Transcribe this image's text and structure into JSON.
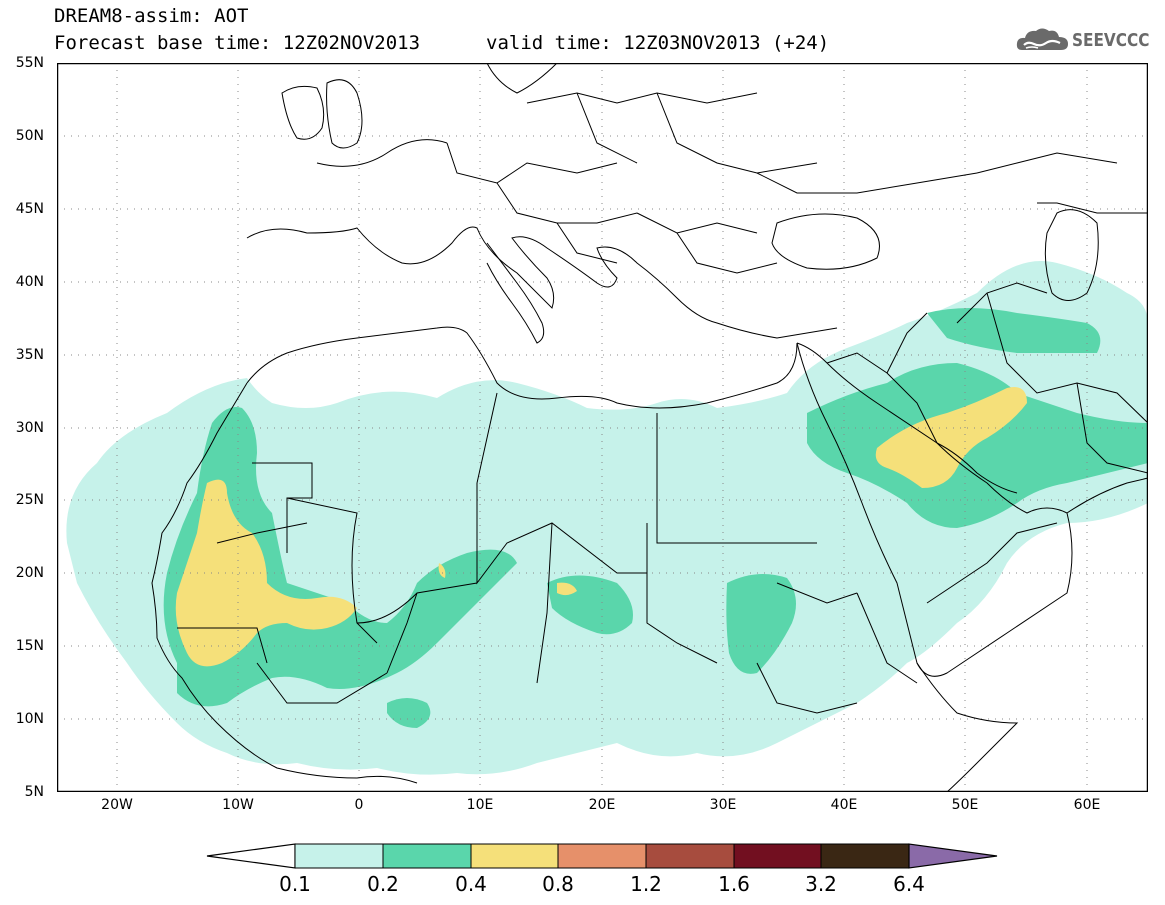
{
  "header": {
    "title_line1": "DREAM8-assim: AOT",
    "title_line2": "Forecast base time: 12Z02NOV2013",
    "valid_time": "valid time: 12Z03NOV2013 (+24)",
    "logo_text": "SEEVCCC",
    "logo_icon": "cloud-icon"
  },
  "map": {
    "lat_labels": [
      "55N",
      "50N",
      "45N",
      "40N",
      "35N",
      "30N",
      "25N",
      "20N",
      "15N",
      "10N",
      "5N"
    ],
    "lon_labels": [
      "20W",
      "10W",
      "0",
      "10E",
      "20E",
      "30E",
      "40E",
      "50E",
      "60E"
    ],
    "lon_range": [
      -25,
      65
    ],
    "lat_range": [
      5,
      55
    ]
  },
  "colorbar": {
    "labels": [
      "0.1",
      "0.2",
      "0.4",
      "0.8",
      "1.2",
      "1.6",
      "3.2",
      "6.4"
    ],
    "colors": [
      "#ffffff",
      "#c6f2ea",
      "#5ad6ab",
      "#f5e07a",
      "#e6906a",
      "#a74c3e",
      "#720f20",
      "#3a2714",
      "#8a6aa8"
    ]
  }
}
